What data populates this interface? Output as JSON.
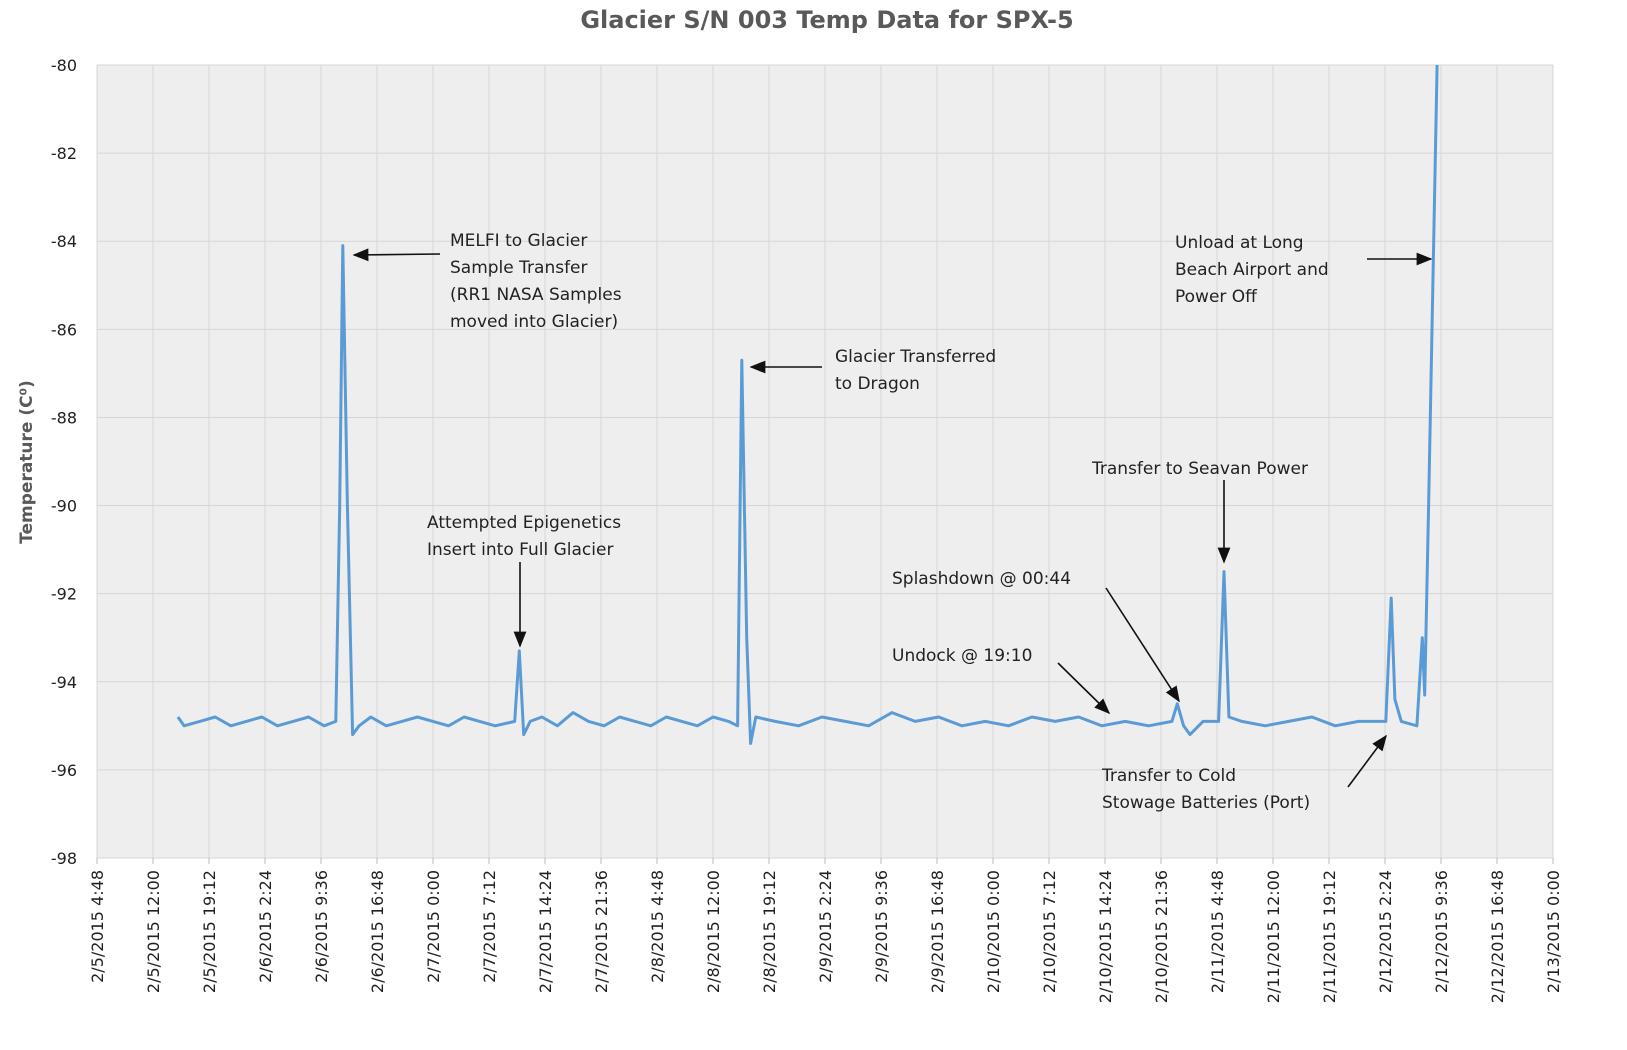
{
  "chart_data": {
    "type": "line",
    "title": "Glacier S/N 003 Temp Data for SPX-5",
    "y_label": "Temperature (C⁰)",
    "ylim": [
      -98,
      -80
    ],
    "yticks": [
      -98,
      -96,
      -94,
      -92,
      -90,
      -88,
      -86,
      -84,
      -82,
      -80
    ],
    "xlim": [
      "2/5/2015 4:48",
      "2/13/2015 0:00"
    ],
    "xticks": [
      "2/5/2015 4:48",
      "2/5/2015 12:00",
      "2/5/2015 19:12",
      "2/6/2015 2:24",
      "2/6/2015 9:36",
      "2/6/2015 16:48",
      "2/7/2015 0:00",
      "2/7/2015 7:12",
      "2/7/2015 14:24",
      "2/7/2015 21:36",
      "2/8/2015 4:48",
      "2/8/2015 12:00",
      "2/8/2015 19:12",
      "2/9/2015 2:24",
      "2/9/2015 9:36",
      "2/9/2015 16:48",
      "2/10/2015 0:00",
      "2/10/2015 7:12",
      "2/10/2015 14:24",
      "2/10/2015 21:36",
      "2/11/2015 4:48",
      "2/11/2015 12:00",
      "2/11/2015 19:12",
      "2/12/2015 2:24",
      "2/12/2015 9:36",
      "2/12/2015 16:48",
      "2/13/2015 0:00"
    ],
    "grid": true,
    "color": "#5b9bd5",
    "x": [
      "2/5/2015 15:12",
      "2/5/2015 16:00",
      "2/5/2015 18:00",
      "2/5/2015 20:00",
      "2/5/2015 22:00",
      "2/6/2015 0:00",
      "2/6/2015 2:00",
      "2/6/2015 4:00",
      "2/6/2015 6:00",
      "2/6/2015 8:00",
      "2/6/2015 10:00",
      "2/6/2015 11:30",
      "2/6/2015 12:00",
      "2/6/2015 12:24",
      "2/6/2015 13:00",
      "2/6/2015 13:40",
      "2/6/2015 14:30",
      "2/6/2015 16:00",
      "2/6/2015 18:00",
      "2/6/2015 20:00",
      "2/6/2015 22:00",
      "2/7/2015 0:00",
      "2/7/2015 2:00",
      "2/7/2015 4:00",
      "2/7/2015 6:00",
      "2/7/2015 8:00",
      "2/7/2015 10:30",
      "2/7/2015 11:06",
      "2/7/2015 11:40",
      "2/7/2015 12:30",
      "2/7/2015 14:00",
      "2/7/2015 16:00",
      "2/7/2015 18:00",
      "2/7/2015 20:00",
      "2/7/2015 22:00",
      "2/8/2015 0:00",
      "2/8/2015 2:00",
      "2/8/2015 4:00",
      "2/8/2015 6:00",
      "2/8/2015 8:00",
      "2/8/2015 10:00",
      "2/8/2015 12:00",
      "2/8/2015 14:00",
      "2/8/2015 15:10",
      "2/8/2015 15:42",
      "2/8/2015 16:20",
      "2/8/2015 16:50",
      "2/8/2015 17:30",
      "2/8/2015 20:00",
      "2/8/2015 23:00",
      "2/9/2015 2:00",
      "2/9/2015 5:00",
      "2/9/2015 8:00",
      "2/9/2015 11:00",
      "2/9/2015 14:00",
      "2/9/2015 17:00",
      "2/9/2015 20:00",
      "2/9/2015 23:00",
      "2/10/2015 2:00",
      "2/10/2015 5:00",
      "2/10/2015 8:00",
      "2/10/2015 11:00",
      "2/10/2015 14:00",
      "2/10/2015 17:00",
      "2/10/2015 20:00",
      "2/10/2015 23:00",
      "2/10/2015 23:42",
      "2/11/2015 0:30",
      "2/11/2015 1:20",
      "2/11/2015 3:00",
      "2/11/2015 5:00",
      "2/11/2015 5:42",
      "2/11/2015 6:20",
      "2/11/2015 8:00",
      "2/11/2015 11:00",
      "2/11/2015 14:00",
      "2/11/2015 17:00",
      "2/11/2015 20:00",
      "2/11/2015 23:00",
      "2/12/2015 2:30",
      "2/12/2015 3:12",
      "2/12/2015 3:40",
      "2/12/2015 4:30",
      "2/12/2015 6:30",
      "2/12/2015 7:12",
      "2/12/2015 7:30",
      "2/12/2015 8:00",
      "2/12/2015 9:06"
    ],
    "values": [
      -94.8,
      -95.0,
      -94.9,
      -94.8,
      -95.0,
      -94.9,
      -94.8,
      -95.0,
      -94.9,
      -94.8,
      -95.0,
      -94.9,
      -90.0,
      -84.1,
      -90.0,
      -95.2,
      -95.0,
      -94.8,
      -95.0,
      -94.9,
      -94.8,
      -94.9,
      -95.0,
      -94.8,
      -94.9,
      -95.0,
      -94.9,
      -93.3,
      -95.2,
      -94.9,
      -94.8,
      -95.0,
      -94.7,
      -94.9,
      -95.0,
      -94.8,
      -94.9,
      -95.0,
      -94.8,
      -94.9,
      -95.0,
      -94.8,
      -94.9,
      -95.0,
      -86.7,
      -93.0,
      -95.4,
      -94.8,
      -94.9,
      -95.0,
      -94.8,
      -94.9,
      -95.0,
      -94.7,
      -94.9,
      -94.8,
      -95.0,
      -94.9,
      -95.0,
      -94.8,
      -94.9,
      -94.8,
      -95.0,
      -94.9,
      -95.0,
      -94.9,
      -94.5,
      -95.0,
      -95.2,
      -94.9,
      -94.9,
      -91.5,
      -94.8,
      -94.9,
      -95.0,
      -94.9,
      -94.8,
      -95.0,
      -94.9,
      -94.9,
      -92.1,
      -94.4,
      -94.9,
      -95.0,
      -93.0,
      -94.3,
      -90.0,
      -80.0
    ],
    "annotations": [
      {
        "lines": [
          "MELFI to Glacier",
          "Sample Transfer",
          "(RR1 NASA Samples",
          "moved into Glacier)"
        ]
      },
      {
        "lines": [
          "Attempted Epigenetics",
          "Insert into Full Glacier"
        ]
      },
      {
        "lines": [
          "Glacier Transferred",
          "to Dragon"
        ]
      },
      {
        "lines": [
          "Unload at Long",
          "Beach Airport and",
          "Power Off"
        ]
      },
      {
        "lines": [
          "Transfer to Seavan Power"
        ]
      },
      {
        "lines": [
          "Splashdown @ 00:44"
        ]
      },
      {
        "lines": [
          "Undock @ 19:10"
        ]
      },
      {
        "lines": [
          "Transfer to Cold",
          "Stowage Batteries (Port)"
        ]
      }
    ]
  }
}
